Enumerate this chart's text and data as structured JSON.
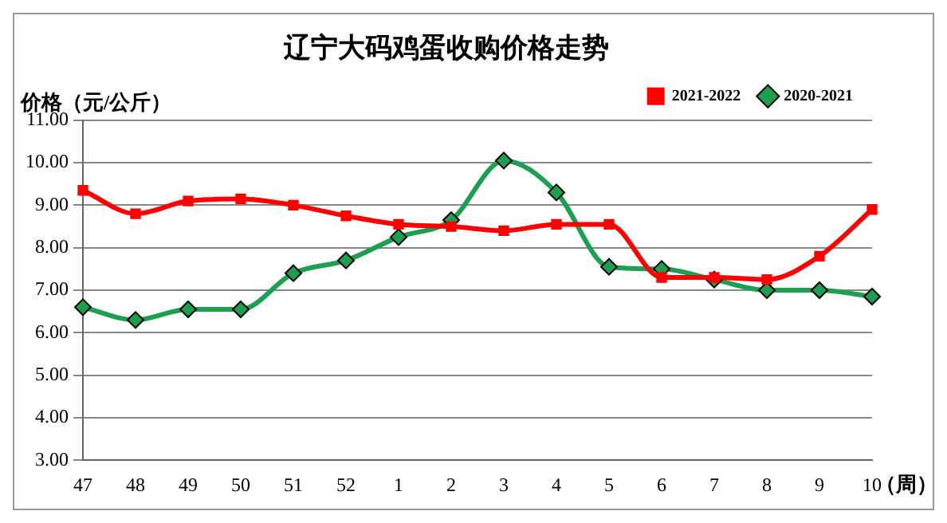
{
  "chart_data": {
    "type": "line",
    "title": "辽宁大码鸡蛋收购价格走势",
    "ylabel": "价格（元/公斤）",
    "xlabel": "（周）",
    "categories": [
      "47",
      "48",
      "49",
      "50",
      "51",
      "52",
      "1",
      "2",
      "3",
      "4",
      "5",
      "6",
      "7",
      "8",
      "9",
      "10"
    ],
    "series": [
      {
        "name": "2020-2021",
        "color": "#1e9e50",
        "marker": "diamond",
        "values": [
          6.6,
          6.3,
          6.55,
          6.55,
          7.4,
          7.7,
          8.25,
          8.65,
          10.05,
          9.3,
          7.55,
          7.5,
          7.25,
          7.0,
          7.0,
          6.85
        ]
      },
      {
        "name": "2021-2022",
        "color": "#ff0000",
        "marker": "square",
        "values": [
          9.35,
          8.8,
          9.1,
          9.15,
          9.0,
          8.75,
          8.55,
          8.5,
          8.4,
          8.55,
          8.55,
          7.3,
          7.3,
          7.25,
          7.8,
          8.9
        ]
      }
    ],
    "ylim": [
      3,
      11
    ],
    "yticks": [
      {
        "value": 3,
        "label": "3.00"
      },
      {
        "value": 4,
        "label": "4.00"
      },
      {
        "value": 5,
        "label": "5.00"
      },
      {
        "value": 6,
        "label": "6.00"
      },
      {
        "value": 7,
        "label": "7.00"
      },
      {
        "value": 8,
        "label": "8.00"
      },
      {
        "value": 9,
        "label": "9.00"
      },
      {
        "value": 10,
        "label": "10.00"
      },
      {
        "value": 11,
        "label": "11.00"
      }
    ],
    "grid": "y",
    "legend": "top right"
  }
}
